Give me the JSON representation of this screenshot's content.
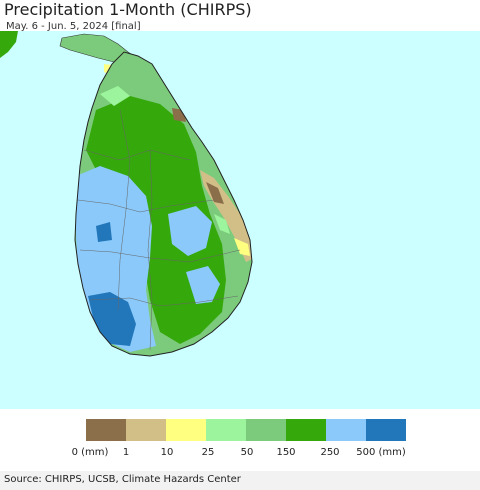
{
  "header": {
    "title": "Precipitation 1-Month (CHIRPS)",
    "subtitle": "May. 6 - Jun. 5, 2024 [final]"
  },
  "map": {
    "region": "Sri Lanka",
    "water_color": "#ccffff"
  },
  "legend": {
    "colors": [
      "#8b6e4a",
      "#d2bf88",
      "#ffff80",
      "#9cf59c",
      "#7ccb7c",
      "#35a80c",
      "#8ac9fa",
      "#2277bb"
    ],
    "labels": [
      "0 (mm)",
      "1",
      "10",
      "25",
      "50",
      "150",
      "250",
      "500 (mm)"
    ]
  },
  "footer": {
    "source": "Source: CHIRPS, UCSB, Climate Hazards Center"
  }
}
